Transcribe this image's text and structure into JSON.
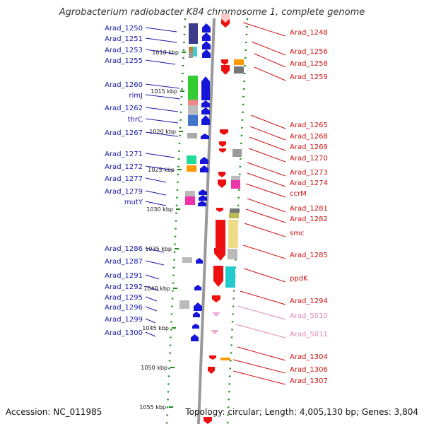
{
  "title": "Agrobacterium radiobacter K84 chromosome 1, complete genome",
  "accession": "Accession: NC_011985",
  "topology": "Topology: circular; Length: 4,005,130 bp; Genes: 3,804",
  "colors": {
    "left_label": "#1a1aa8",
    "right_label": "#d01010",
    "rna_label": "#e088b4",
    "forward": "#1616d8",
    "reverse": "#ee1010"
  },
  "scale_labels": [
    "1010 kbp",
    "1015 kbp",
    "1020 kbp",
    "1025 kbp",
    "1030 kbp",
    "1035 kbp",
    "1040 kbp",
    "1045 kbp",
    "1050 kbp",
    "1055 kbp"
  ],
  "left_genes": [
    "Arad_1250",
    "Arad_1251",
    "Arad_1253",
    "Arad_1255",
    "Arad_1260",
    "rimJ",
    "Arad_1262",
    "thrC",
    "Arad_1267",
    "Arad_1271",
    "Arad_1272",
    "Arad_1277",
    "Arad_1279",
    "mutY",
    "Arad_1286",
    "Arad_1287",
    "Arad_1291",
    "Arad_1292",
    "Arad_1295",
    "Arad_1296",
    "Arad_1299",
    "Arad_1300"
  ],
  "right_genes": [
    "Arad_1248",
    "Arad_1256",
    "Arad_1258",
    "Arad_1259",
    "Arad_1265",
    "Arad_1268",
    "Arad_1269",
    "Arad_1270",
    "Arad_1273",
    "Arad_1274",
    "ccrM",
    "Arad_1281",
    "Arad_1282",
    "smc",
    "Arad_1285",
    "ppdK",
    "Arad_1294",
    "Arad_5010",
    "Arad_5011",
    "Arad_1304",
    "Arad_1306",
    "Arad_1307"
  ]
}
